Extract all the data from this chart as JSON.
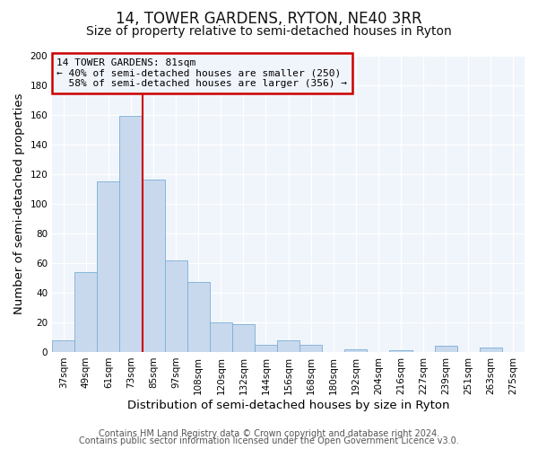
{
  "title": "14, TOWER GARDENS, RYTON, NE40 3RR",
  "subtitle": "Size of property relative to semi-detached houses in Ryton",
  "xlabel": "Distribution of semi-detached houses by size in Ryton",
  "ylabel": "Number of semi-detached properties",
  "bar_labels": [
    "37sqm",
    "49sqm",
    "61sqm",
    "73sqm",
    "85sqm",
    "97sqm",
    "108sqm",
    "120sqm",
    "132sqm",
    "144sqm",
    "156sqm",
    "168sqm",
    "180sqm",
    "192sqm",
    "204sqm",
    "216sqm",
    "227sqm",
    "239sqm",
    "251sqm",
    "263sqm",
    "275sqm"
  ],
  "bar_values": [
    8,
    54,
    115,
    159,
    116,
    62,
    47,
    20,
    19,
    5,
    8,
    5,
    0,
    2,
    0,
    1,
    0,
    4,
    0,
    3,
    0
  ],
  "bar_color": "#c8d9ee",
  "bar_edge_color": "#7bafd4",
  "ylim": [
    0,
    200
  ],
  "yticks": [
    0,
    20,
    40,
    60,
    80,
    100,
    120,
    140,
    160,
    180,
    200
  ],
  "property_label": "14 TOWER GARDENS: 81sqm",
  "pct_smaller": 40,
  "count_smaller": 250,
  "pct_larger": 58,
  "count_larger": 356,
  "vline_color": "#cc0000",
  "annotation_box_color": "#cc0000",
  "footer1": "Contains HM Land Registry data © Crown copyright and database right 2024.",
  "footer2": "Contains public sector information licensed under the Open Government Licence v3.0.",
  "background_color": "#ffffff",
  "plot_bg_color": "#f0f4fb",
  "grid_color": "#e8eef6",
  "title_fontsize": 12,
  "subtitle_fontsize": 10,
  "axis_label_fontsize": 9.5,
  "tick_fontsize": 7.5,
  "footer_fontsize": 7,
  "ann_fontsize": 8
}
